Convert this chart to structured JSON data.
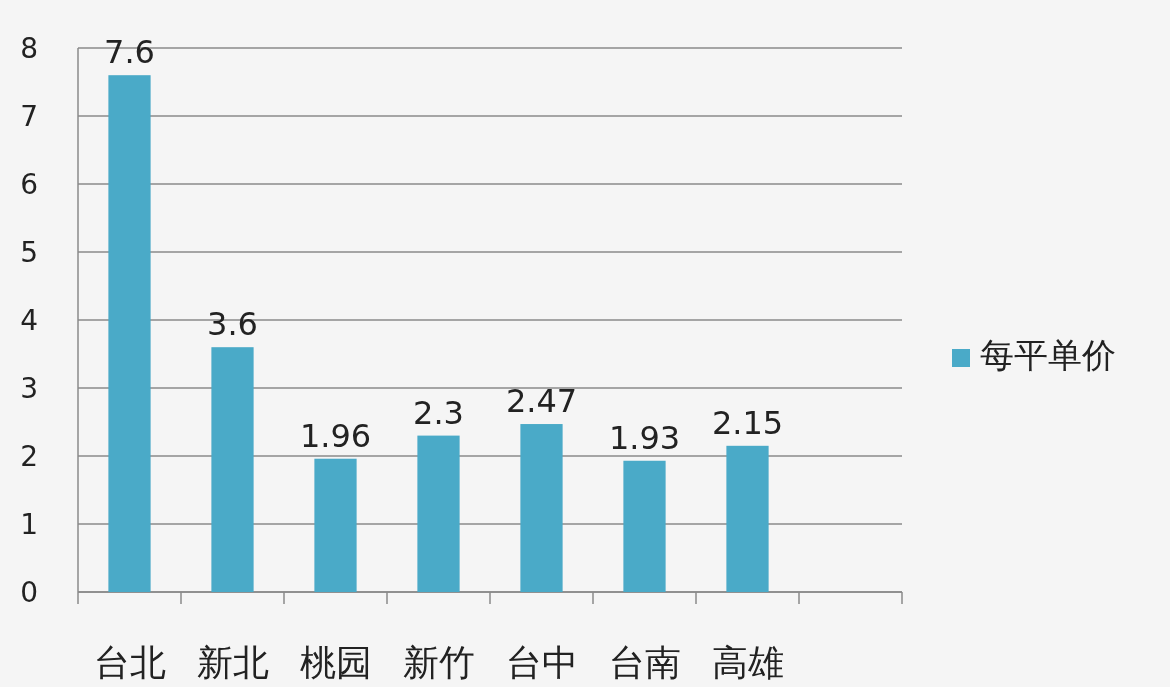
{
  "chart_data": {
    "type": "bar",
    "categories": [
      "台北",
      "新北",
      "桃园",
      "新竹",
      "台中",
      "台南",
      "高雄",
      null
    ],
    "series": [
      {
        "name": "每平单价",
        "color": "#4aaac8",
        "values": [
          7.6,
          3.6,
          1.96,
          2.3,
          2.47,
          1.93,
          2.15,
          null
        ]
      }
    ],
    "ylim": [
      0,
      8
    ],
    "yticks": [
      0,
      1,
      2,
      3,
      4,
      5,
      6,
      7,
      8
    ],
    "grid": "y",
    "legend": "right",
    "data_labels": true
  }
}
